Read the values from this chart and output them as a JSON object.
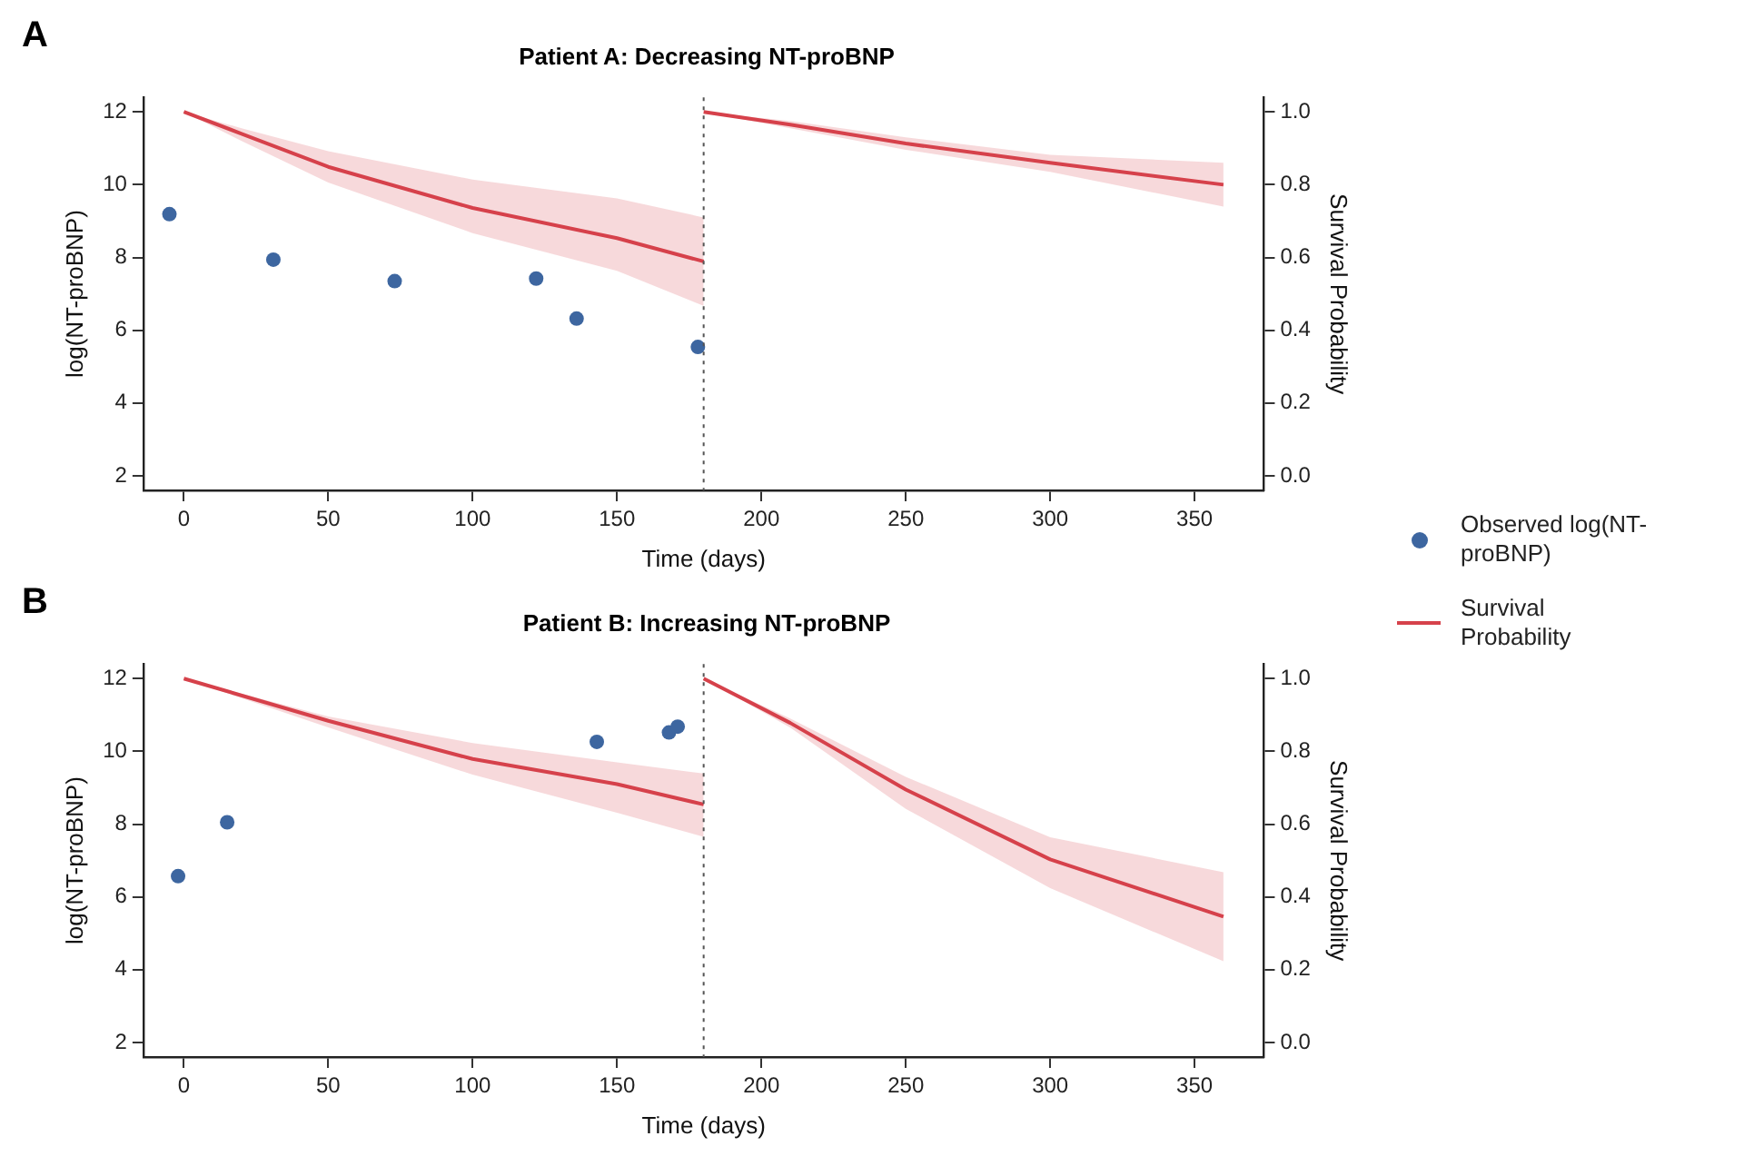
{
  "chart_data": [
    {
      "type": "scatter",
      "title": "Patient A: Decreasing NT-proBNP",
      "xlabel": "Time (days)",
      "ylabel": "log(NT-proBNP)",
      "y2label": "Survival Probability",
      "annotations": [
        "A"
      ],
      "xlim": [
        -14,
        374
      ],
      "xticks": [
        0,
        50,
        100,
        150,
        200,
        250,
        300,
        350
      ],
      "ylim": [
        1.6,
        12.4
      ],
      "yticks": [
        2,
        4,
        6,
        8,
        10,
        12
      ],
      "y2lim": [
        -0.04,
        1.04
      ],
      "y2ticks": [
        {
          "value": 0,
          "label": "0.0"
        },
        {
          "value": 0.2,
          "label": "0.2"
        },
        {
          "value": 0.4,
          "label": "0.4"
        },
        {
          "value": 0.6,
          "label": "0.6"
        },
        {
          "value": 0.8,
          "label": "0.8"
        },
        {
          "value": 1,
          "label": "1.0"
        }
      ],
      "grid": false,
      "legend": "right",
      "ref_lines": [
        {
          "axis": "x",
          "value": 180,
          "line_style": "dotted",
          "color": "#555555"
        }
      ],
      "series": [
        {
          "name": "Observed log(NT-proBNP)",
          "marker": "circle",
          "color": "#3d66a0",
          "x": [
            -5,
            31,
            73,
            122,
            136,
            178
          ],
          "values": [
            9.19,
            7.94,
            7.35,
            7.42,
            6.32,
            5.54
          ]
        },
        {
          "name": "Survival Probability",
          "type": "line",
          "axis": "y2",
          "marker": "none",
          "color": "#d6424b",
          "x": [
            0,
            20,
            50,
            100,
            150,
            180
          ],
          "values": [
            1,
            0.94,
            0.849,
            0.736,
            0.653,
            0.589
          ],
          "lower": [
            1,
            0.92,
            0.806,
            0.667,
            0.563,
            0.467
          ],
          "upper": [
            1,
            0.955,
            0.892,
            0.814,
            0.762,
            0.71
          ]
        },
        {
          "type": "line",
          "axis": "y2",
          "marker": "none",
          "color": "#d6424b",
          "x": [
            180,
            210,
            250,
            300,
            360
          ],
          "values": [
            1,
            0.965,
            0.913,
            0.86,
            0.8
          ],
          "lower": [
            1,
            0.955,
            0.896,
            0.835,
            0.74
          ],
          "upper": [
            1,
            0.975,
            0.93,
            0.882,
            0.86
          ]
        }
      ]
    },
    {
      "type": "scatter",
      "title": "Patient B: Increasing NT-proBNP",
      "xlabel": "Time (days)",
      "ylabel": "log(NT-proBNP)",
      "y2label": "Survival Probability",
      "annotations": [
        "B"
      ],
      "xlim": [
        -14,
        374
      ],
      "xticks": [
        0,
        50,
        100,
        150,
        200,
        250,
        300,
        350
      ],
      "ylim": [
        1.6,
        12.4
      ],
      "yticks": [
        2,
        4,
        6,
        8,
        10,
        12
      ],
      "y2lim": [
        -0.04,
        1.04
      ],
      "y2ticks": [
        {
          "value": 0,
          "label": "0.0"
        },
        {
          "value": 0.2,
          "label": "0.2"
        },
        {
          "value": 0.4,
          "label": "0.4"
        },
        {
          "value": 0.6,
          "label": "0.6"
        },
        {
          "value": 0.8,
          "label": "0.8"
        },
        {
          "value": 1,
          "label": "1.0"
        }
      ],
      "grid": false,
      "ref_lines": [
        {
          "axis": "x",
          "value": 180,
          "line_style": "dotted",
          "color": "#555555"
        }
      ],
      "series": [
        {
          "marker": "circle",
          "color": "#3d66a0",
          "x": [
            -2,
            15,
            143,
            168,
            171
          ],
          "values": [
            6.57,
            8.05,
            10.26,
            10.52,
            10.68
          ]
        },
        {
          "type": "line",
          "axis": "y2",
          "marker": "none",
          "color": "#d6424b",
          "x": [
            0,
            50,
            100,
            150,
            180
          ],
          "values": [
            1,
            0.884,
            0.779,
            0.71,
            0.654
          ],
          "lower": [
            1,
            0.866,
            0.736,
            0.631,
            0.565
          ],
          "upper": [
            1,
            0.896,
            0.823,
            0.77,
            0.739
          ]
        },
        {
          "type": "line",
          "axis": "y2",
          "marker": "none",
          "color": "#d6424b",
          "x": [
            180,
            210,
            250,
            300,
            360
          ],
          "values": [
            1,
            0.878,
            0.695,
            0.503,
            0.346
          ],
          "lower": [
            1,
            0.865,
            0.642,
            0.424,
            0.223
          ],
          "upper": [
            1,
            0.89,
            0.73,
            0.564,
            0.468
          ]
        }
      ]
    }
  ]
}
